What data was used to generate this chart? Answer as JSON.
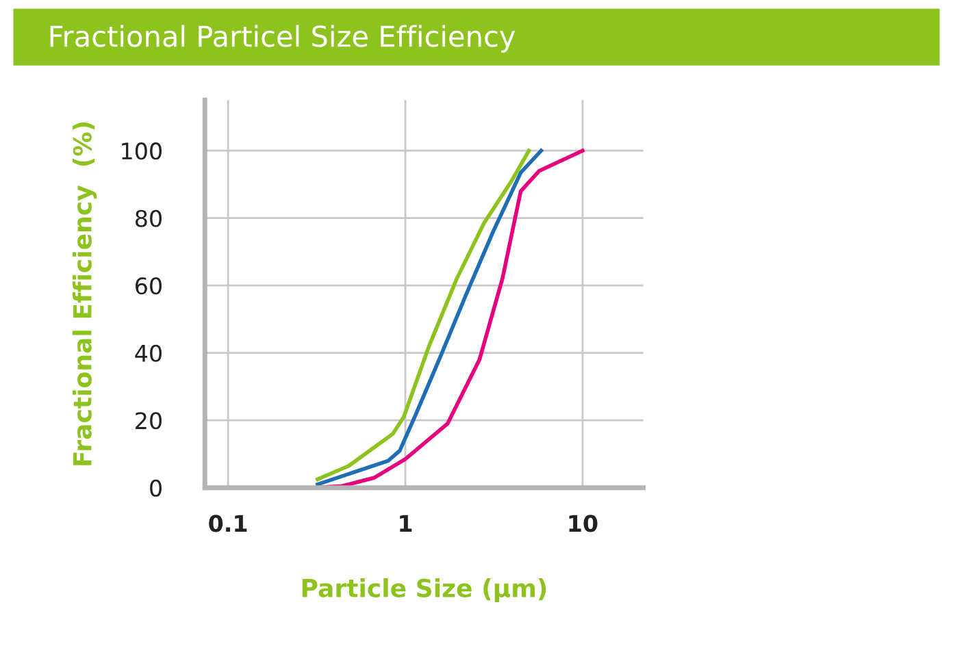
{
  "chart_data": {
    "type": "line",
    "title": "Fractional Particel Size Efficiency",
    "xlabel": "Particle Size (µm)",
    "ylabel": "Fractional Efficiency  (%)",
    "log": "x",
    "xlim": [
      0.074,
      22
    ],
    "xticks": [
      0.1,
      1,
      10
    ],
    "ylim": [
      0,
      115
    ],
    "yticks": [
      0,
      20,
      40,
      60,
      80,
      100
    ],
    "grid": true,
    "marker": "none",
    "line_style": "solid",
    "series": [
      {
        "color": "#e5007d",
        "x": [
          0.3,
          0.44,
          0.67,
          1,
          1.73,
          2.62,
          3.53,
          4.48,
          5.69,
          10
        ],
        "values": [
          0,
          0.5,
          3,
          8.5,
          19,
          38,
          62,
          88,
          94,
          100
        ]
      },
      {
        "color": "#1f6eb5",
        "x": [
          0.32,
          0.8,
          0.93,
          1.14,
          1.58,
          2.19,
          3.13,
          4.48,
          5.84
        ],
        "values": [
          1,
          8,
          11,
          21.5,
          39,
          57,
          76,
          93.5,
          100
        ]
      },
      {
        "color": "#8dc21f",
        "x": [
          0.32,
          0.48,
          0.85,
          0.98,
          1.36,
          1.95,
          2.78,
          3.97,
          4.98
        ],
        "values": [
          2.5,
          6.5,
          16,
          21,
          42,
          62,
          78.5,
          91,
          100
        ]
      }
    ]
  }
}
